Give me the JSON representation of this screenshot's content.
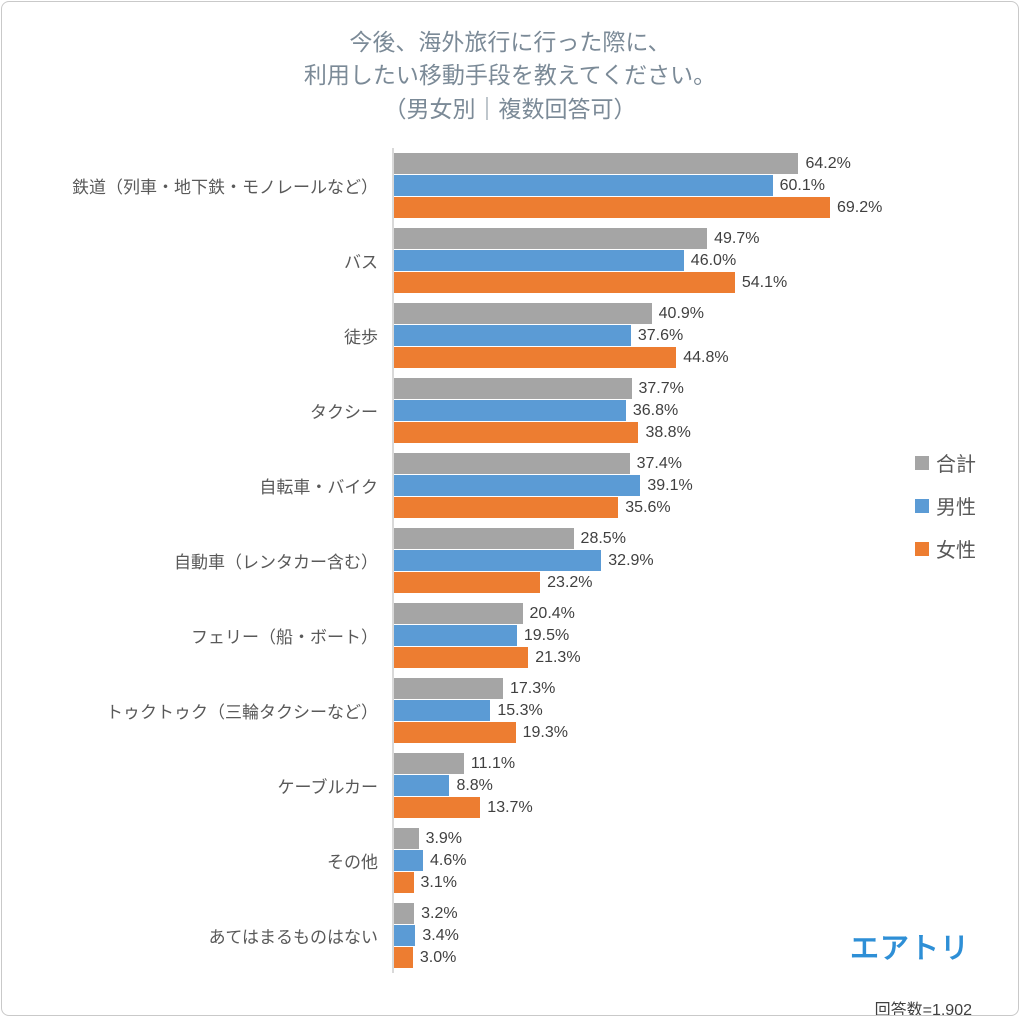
{
  "title": {
    "line1": "今後、海外旅行に行った際に、",
    "line2": "利用したい移動手段を教えてください。",
    "line3": "（男女別｜複数回答可）"
  },
  "chart_data": {
    "type": "bar",
    "orientation": "horizontal",
    "title": "今後、海外旅行に行った際に、利用したい移動手段を教えてください。（男女別｜複数回答可）",
    "categories": [
      "鉄道（列車・地下鉄・モノレールなど）",
      "バス",
      "徒歩",
      "タクシー",
      "自転車・バイク",
      "自動車（レンタカー含む）",
      "フェリー（船・ボート）",
      "トゥクトゥク（三輪タクシーなど）",
      "ケーブルカー",
      "その他",
      "あてはまるものはない"
    ],
    "series": [
      {
        "key": "total",
        "name": "合計",
        "color": "#a5a5a5",
        "values": [
          64.2,
          49.7,
          40.9,
          37.7,
          37.4,
          28.5,
          20.4,
          17.3,
          11.1,
          3.9,
          3.2
        ]
      },
      {
        "key": "male",
        "name": "男性",
        "color": "#5b9bd5",
        "values": [
          60.1,
          46.0,
          37.6,
          36.8,
          39.1,
          32.9,
          19.5,
          15.3,
          8.8,
          4.6,
          3.4
        ]
      },
      {
        "key": "female",
        "name": "女性",
        "color": "#ed7d31",
        "values": [
          69.2,
          54.1,
          44.8,
          38.8,
          35.6,
          23.2,
          21.3,
          19.3,
          13.7,
          3.1,
          3.0
        ]
      }
    ],
    "value_suffix": "%",
    "xlim": [
      0,
      70
    ],
    "legend_position": "right",
    "grid": false,
    "note": "回答数=1,902"
  },
  "footer": {
    "respondents": "回答数=1,902",
    "logo": "エアトリ"
  }
}
